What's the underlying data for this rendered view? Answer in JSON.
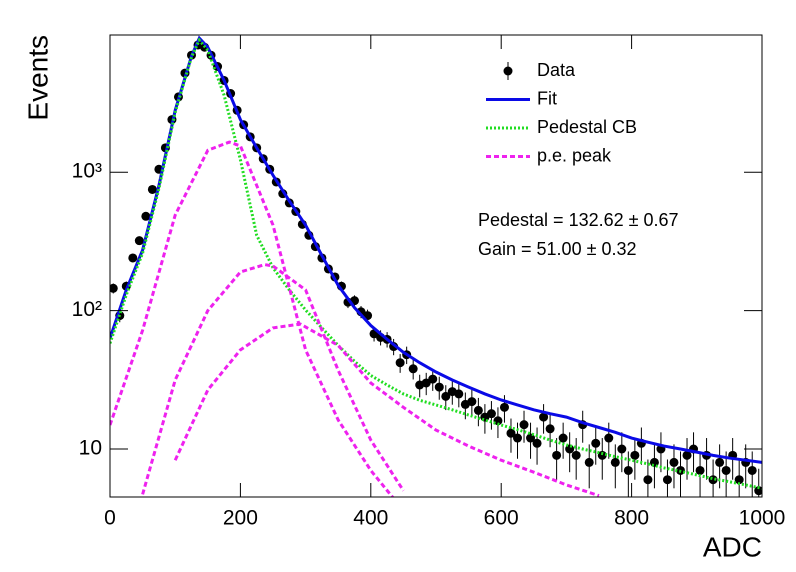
{
  "chart_data": {
    "type": "line",
    "x_label": "ADC",
    "y_label": "Events",
    "xlim": [
      0,
      1000
    ],
    "xticks": [
      0,
      200,
      400,
      600,
      800,
      1000
    ],
    "ylim": [
      4.5,
      9800
    ],
    "yticks": [
      10,
      {
        "value": 100,
        "label": "10²"
      },
      {
        "value": 1000,
        "label": "10³"
      }
    ],
    "log_y": true,
    "grid": false,
    "legend": "upper right",
    "annotations": [
      "Pedestal = 132.62 ± 0.67",
      "Gain = 51.00 ± 0.32"
    ],
    "series": [
      {
        "name": "Data",
        "color": "#000000",
        "x": [
          5,
          15,
          25,
          35,
          45,
          55,
          65,
          75,
          85,
          95,
          105,
          115,
          125,
          135,
          145,
          155,
          165,
          175,
          185,
          195,
          205,
          215,
          225,
          235,
          245,
          255,
          265,
          275,
          285,
          295,
          305,
          315,
          325,
          335,
          345,
          355,
          365,
          375,
          385,
          395,
          405,
          415,
          425,
          435,
          445,
          455,
          465,
          475,
          485,
          495,
          505,
          515,
          525,
          535,
          545,
          555,
          565,
          575,
          585,
          595,
          605,
          615,
          625,
          635,
          645,
          655,
          665,
          675,
          685,
          695,
          705,
          715,
          725,
          735,
          745,
          755,
          765,
          775,
          785,
          795,
          805,
          815,
          825,
          835,
          845,
          855,
          865,
          875,
          885,
          895,
          905,
          915,
          925,
          935,
          945,
          955,
          965,
          975,
          985,
          995
        ],
        "values": [
          145,
          92,
          150,
          240,
          320,
          480,
          750,
          1050,
          1500,
          2400,
          3500,
          5200,
          7000,
          8300,
          8000,
          7000,
          5800,
          4600,
          3700,
          2800,
          2200,
          1800,
          1500,
          1250,
          1050,
          850,
          700,
          600,
          520,
          420,
          350,
          290,
          240,
          200,
          175,
          150,
          115,
          118,
          98,
          92,
          68,
          64,
          62,
          55,
          42,
          48,
          38,
          29,
          30,
          32,
          28,
          24,
          26,
          25,
          21,
          22,
          19,
          17,
          18,
          16,
          20,
          13,
          12,
          15,
          12,
          11,
          17,
          14,
          9,
          12,
          10,
          9,
          15,
          8,
          11,
          9,
          12,
          8,
          10,
          7,
          9,
          11,
          6,
          8,
          10,
          6,
          8,
          7,
          9,
          10,
          7,
          9,
          6,
          8,
          7,
          9,
          6,
          8,
          7,
          5
        ],
        "errors": [
          12,
          9.6,
          12.2,
          15.5,
          17.9,
          21.9,
          27.4,
          32.4,
          38.7,
          49,
          59.2,
          72.1,
          83.7,
          91.1,
          89.4,
          83.7,
          76.2,
          67.8,
          60.8,
          52.9,
          46.9,
          42.4,
          38.7,
          35.4,
          32.4,
          29.2,
          26.5,
          24.5,
          22.8,
          20.5,
          18.7,
          17,
          15.5,
          14.1,
          13.2,
          12.2,
          10.7,
          10.9,
          9.9,
          9.6,
          8.2,
          8,
          7.9,
          7.4,
          6.5,
          6.9,
          6.2,
          5.4,
          5.5,
          5.7,
          5.3,
          4.9,
          5.1,
          5,
          4.6,
          4.7,
          4.4,
          4.1,
          4.2,
          4,
          4.5,
          3.6,
          3.5,
          3.9,
          3.5,
          3.3,
          4.1,
          3.7,
          3,
          3.5,
          3.2,
          3,
          3.9,
          2.8,
          3.3,
          3,
          3.5,
          2.8,
          3.2,
          2.6,
          3,
          3.3,
          2.4,
          2.8,
          3.2,
          2.4,
          2.8,
          2.6,
          3,
          3.2,
          2.6,
          3,
          2.4,
          2.8,
          2.6,
          3,
          2.4,
          2.8,
          2.6,
          2.2
        ]
      },
      {
        "name": "Fit",
        "color": "#0a0ae6",
        "line_style": "solid",
        "x": [
          0,
          25,
          50,
          75,
          100,
          125,
          137,
          150,
          175,
          200,
          225,
          250,
          275,
          300,
          325,
          350,
          375,
          400,
          425,
          450,
          475,
          500,
          525,
          550,
          575,
          600,
          625,
          650,
          675,
          700,
          725,
          750,
          775,
          800,
          825,
          850,
          875,
          900,
          925,
          950,
          975,
          1000
        ],
        "values": [
          63,
          141,
          274,
          800,
          2800,
          6900,
          9300,
          8000,
          4600,
          2400,
          1500,
          950,
          620,
          414,
          250,
          152,
          105,
          78,
          62,
          50,
          42,
          36,
          31.5,
          28,
          25,
          22.6,
          20.8,
          19.2,
          18,
          17,
          15.5,
          14.3,
          13.2,
          12,
          11.2,
          10.5,
          10,
          9.5,
          9,
          8.6,
          8.3,
          8
        ]
      },
      {
        "name": "Pedestal CB",
        "color": "#22dd22",
        "line_style": "dotted",
        "x": [
          0,
          25,
          50,
          75,
          100,
          125,
          137,
          150,
          175,
          200,
          225,
          250,
          275,
          300,
          325,
          350,
          375,
          400,
          425,
          450,
          475,
          500,
          525,
          550,
          575,
          600,
          625,
          650,
          675,
          700,
          725,
          750,
          775,
          800,
          825,
          850,
          875,
          900,
          925,
          950,
          975,
          1000
        ],
        "values": [
          58,
          130,
          260,
          760,
          2700,
          6800,
          9000,
          7600,
          3600,
          1230,
          350,
          204,
          141,
          101,
          75,
          56,
          43,
          34,
          29,
          25,
          22.5,
          20.8,
          19.2,
          17.6,
          16.2,
          14.9,
          13.8,
          12.7,
          11.6,
          10.7,
          10,
          9.4,
          8.8,
          8.3,
          7.8,
          7.3,
          6.9,
          6.5,
          6.1,
          5.8,
          5.5,
          5.2
        ]
      },
      {
        "name": "p.e. peak",
        "color": "#ee22ee",
        "line_style": "dashed",
        "curves": [
          {
            "x": [
              0,
              50,
              100,
              150,
              183,
              200,
              250,
              300,
              350,
              400,
              450
            ],
            "values": [
              14.9,
              72,
              490,
              1440,
              1650,
              1550,
              415,
              52,
              16.2,
              7,
              3.6
            ]
          },
          {
            "x": [
              50,
              100,
              150,
              200,
              237,
              250,
              300,
              350,
              400,
              450
            ],
            "values": [
              4.7,
              31.5,
              100,
              190,
              215,
              210,
              141,
              37,
              11.6,
              5
            ]
          },
          {
            "x": [
              100,
              150,
              200,
              250,
              292,
              350,
              400,
              450,
              500,
              550,
              600,
              650,
              700,
              750
            ],
            "values": [
              8.3,
              26.7,
              52,
              75,
              80,
              56,
              30,
              20,
              13.7,
              10.5,
              8.3,
              6.8,
              5.5,
              4.6
            ]
          }
        ]
      }
    ]
  }
}
